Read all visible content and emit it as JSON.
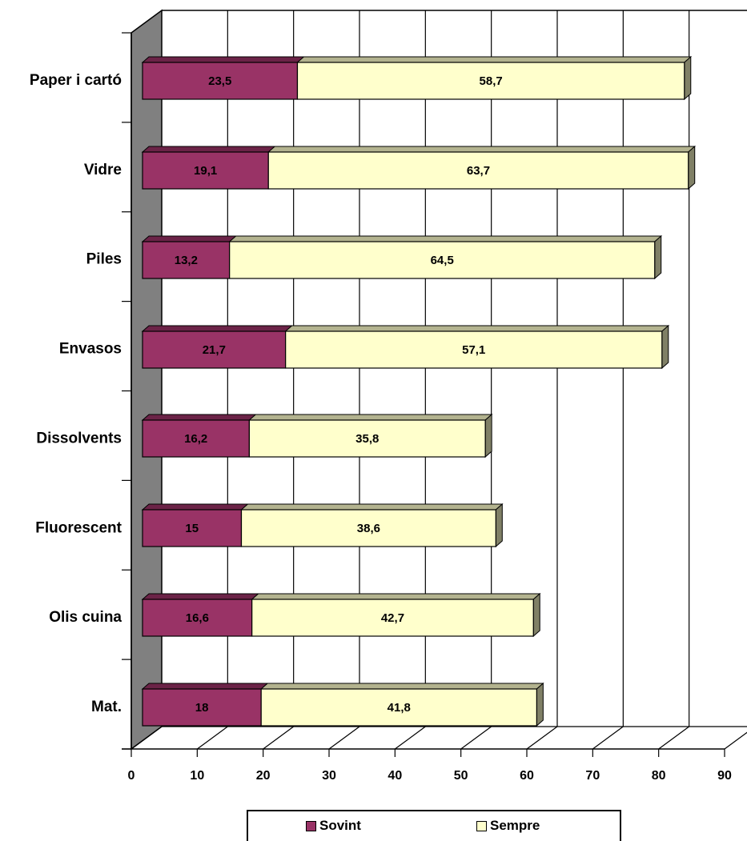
{
  "chart_data": {
    "type": "bar",
    "orientation": "horizontal",
    "stacked": true,
    "style": "3d",
    "categories": [
      "Paper i cartó",
      "Vidre",
      "Piles",
      "Envasos",
      "Dissolvents",
      "Fluorescent",
      "Olis cuina",
      "Mat."
    ],
    "series": [
      {
        "name": "Sovint",
        "color": "#993366",
        "values": [
          23.5,
          19.1,
          13.2,
          21.7,
          16.2,
          15,
          16.6,
          18
        ],
        "labels": [
          "23,5",
          "19,1",
          "13,2",
          "21,7",
          "16,2",
          "15",
          "16,6",
          "18"
        ]
      },
      {
        "name": "Sempre",
        "color": "#ffffcc",
        "values": [
          58.7,
          63.7,
          64.5,
          57.1,
          35.8,
          38.6,
          42.7,
          41.8
        ],
        "labels": [
          "58,7",
          "63,7",
          "64,5",
          "57,1",
          "35,8",
          "38,6",
          "42,7",
          "41,8"
        ]
      }
    ],
    "xlim": [
      0,
      90
    ],
    "xticks": [
      "0",
      "10",
      "20",
      "30",
      "40",
      "50",
      "60",
      "70",
      "80",
      "90"
    ],
    "grid": true,
    "legend_position": "bottom",
    "wall_color": "#808080"
  },
  "legend": {
    "items": [
      {
        "name": "Sovint",
        "color": "#993366"
      },
      {
        "name": "Sempre",
        "color": "#ffffcc"
      }
    ]
  }
}
